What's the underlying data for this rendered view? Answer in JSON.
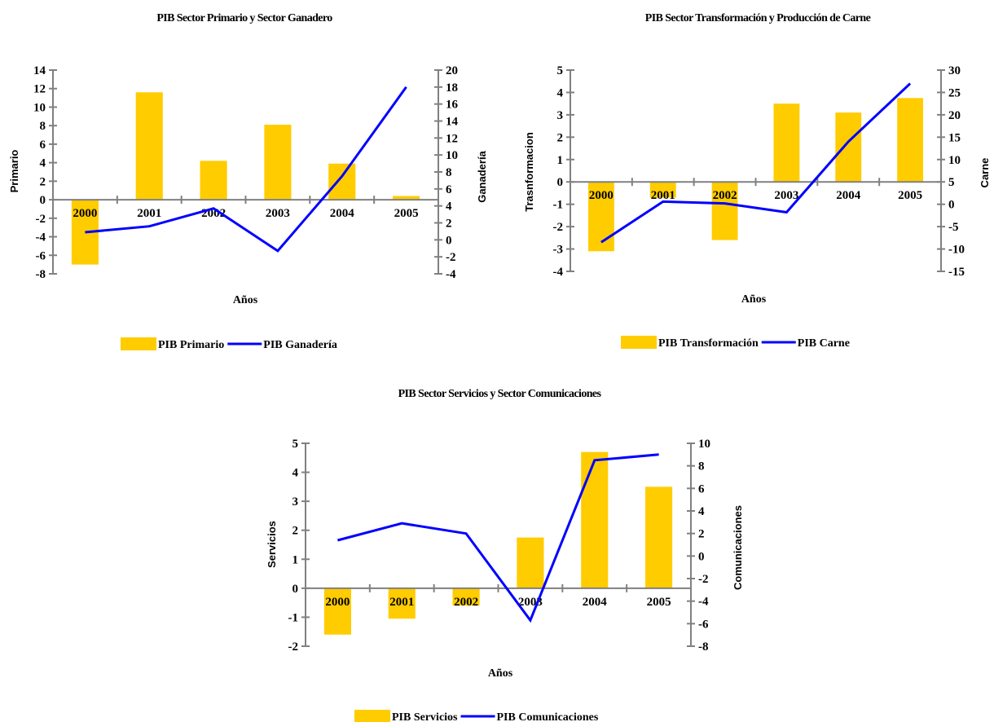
{
  "chart_data": [
    {
      "type": "bar",
      "title": "PIB Sector Primario y Sector Ganadero",
      "xlabel": "Años",
      "ylabel": "Primario",
      "y2label": "Ganadería",
      "categories": [
        "2000",
        "2001",
        "2002",
        "2003",
        "2004",
        "2005"
      ],
      "ylim": [
        -8,
        14
      ],
      "yticks": [
        -8,
        -6,
        -4,
        -2,
        0,
        2,
        4,
        6,
        8,
        10,
        12,
        14
      ],
      "y2lim": [
        -4,
        20
      ],
      "y2ticks": [
        -4,
        -2,
        0,
        2,
        4,
        6,
        8,
        10,
        12,
        14,
        16,
        18,
        20
      ],
      "series": [
        {
          "name": "PIB Primario",
          "type": "bar",
          "axis": "left",
          "color": "#FFCC00",
          "values": [
            -7.0,
            11.6,
            4.2,
            8.1,
            3.9,
            0.4
          ]
        },
        {
          "name": "PIB Ganadería",
          "type": "line",
          "axis": "right",
          "color": "#0000FF",
          "values": [
            0.9,
            1.6,
            3.7,
            -1.3,
            7.5,
            18.0
          ]
        }
      ],
      "legend": "bottom",
      "grid": false
    },
    {
      "type": "bar",
      "title": "PIB Sector Transformación y Producción de Carne",
      "xlabel": "Años",
      "ylabel": "Trasnformacion",
      "y2label": "Carne",
      "categories": [
        "2000",
        "2001",
        "2002",
        "2003",
        "2004",
        "2005"
      ],
      "ylim": [
        -4,
        5
      ],
      "yticks": [
        -4,
        -3,
        -2,
        -1,
        0,
        1,
        2,
        3,
        4,
        5
      ],
      "y2lim": [
        -15,
        30
      ],
      "y2ticks": [
        -15,
        -10,
        -5,
        0,
        5,
        10,
        15,
        20,
        25,
        30
      ],
      "series": [
        {
          "name": "PIB Transformación",
          "type": "bar",
          "axis": "left",
          "color": "#FFCC00",
          "values": [
            -3.1,
            -0.7,
            -2.6,
            3.5,
            3.1,
            3.75
          ]
        },
        {
          "name": "PIB Carne",
          "type": "line",
          "axis": "right",
          "color": "#0000FF",
          "values": [
            -8.5,
            0.6,
            0.2,
            -1.8,
            14.0,
            27.0
          ]
        }
      ],
      "legend": "bottom",
      "grid": false
    },
    {
      "type": "bar",
      "title": "PIB Sector Servicios y Sector Comunicaciones",
      "xlabel": "Años",
      "ylabel": "Servicios",
      "y2label": "Comunicaciones",
      "categories": [
        "2000",
        "2001",
        "2002",
        "2003",
        "2004",
        "2005"
      ],
      "ylim": [
        -2,
        5
      ],
      "yticks": [
        -2,
        -1,
        0,
        1,
        2,
        3,
        4,
        5
      ],
      "y2lim": [
        -8,
        10
      ],
      "y2ticks": [
        -8,
        -6,
        -4,
        -2,
        0,
        2,
        4,
        6,
        8,
        10
      ],
      "series": [
        {
          "name": "PIB Servicios",
          "type": "bar",
          "axis": "left",
          "color": "#FFCC00",
          "values": [
            -1.6,
            -1.05,
            -0.6,
            1.75,
            4.7,
            3.5
          ]
        },
        {
          "name": "PIB Comunicaciones",
          "type": "line",
          "axis": "right",
          "color": "#0000FF",
          "values": [
            1.4,
            2.9,
            2.0,
            -5.7,
            8.5,
            9.0
          ]
        }
      ],
      "legend": "bottom",
      "grid": false
    }
  ]
}
